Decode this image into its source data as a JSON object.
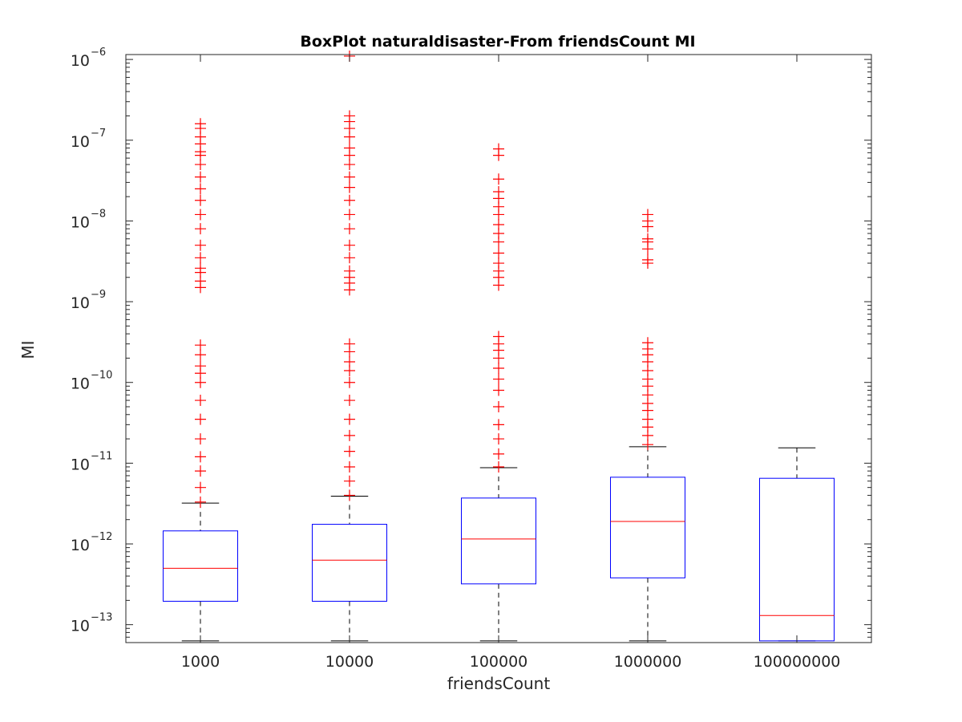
{
  "chart_data": {
    "type": "boxplot",
    "title": "BoxPlot naturaldisaster-From friendsCount MI",
    "xlabel": "friendsCount",
    "ylabel": "MI",
    "yscale": "log",
    "ylim": [
      6e-14,
      1.15e-06
    ],
    "yticks": [
      {
        "value": 1e-13,
        "base": "10",
        "exp": "−13"
      },
      {
        "value": 1e-12,
        "base": "10",
        "exp": "−12"
      },
      {
        "value": 1e-11,
        "base": "10",
        "exp": "−11"
      },
      {
        "value": 1e-10,
        "base": "10",
        "exp": "−10"
      },
      {
        "value": 1e-09,
        "base": "10",
        "exp": "−9"
      },
      {
        "value": 1e-08,
        "base": "10",
        "exp": "−8"
      },
      {
        "value": 1e-07,
        "base": "10",
        "exp": "−7"
      },
      {
        "value": 1e-06,
        "base": "10",
        "exp": "−6"
      }
    ],
    "categories": [
      "1000",
      "10000",
      "100000",
      "1000000",
      "100000000"
    ],
    "boxes": [
      {
        "category": "1000",
        "whisker_low": 6.3e-14,
        "q1": 1.95e-13,
        "median": 5e-13,
        "q3": 1.45e-12,
        "whisker_high": 3.2e-12,
        "outliers": [
          3.3e-12,
          5e-12,
          8e-12,
          1.2e-11,
          2e-11,
          3.5e-11,
          6e-11,
          1e-10,
          1.3e-10,
          1.6e-10,
          2.2e-10,
          2.9e-10,
          1.5e-09,
          1.8e-09,
          2.3e-09,
          2.6e-09,
          3.5e-09,
          5e-09,
          8e-09,
          1.2e-08,
          1.8e-08,
          2.5e-08,
          3.5e-08,
          5e-08,
          6.5e-08,
          7.2e-08,
          9e-08,
          1.1e-07,
          1.4e-07,
          1.6e-07
        ]
      },
      {
        "category": "10000",
        "whisker_low": 6.3e-14,
        "q1": 1.95e-13,
        "median": 6.3e-13,
        "q3": 1.75e-12,
        "whisker_high": 3.9e-12,
        "outliers": [
          4e-12,
          6e-12,
          9e-12,
          1.4e-11,
          2.2e-11,
          3.5e-11,
          6e-11,
          1e-10,
          1.4e-10,
          1.8e-10,
          2.4e-10,
          3e-10,
          1.4e-09,
          1.7e-09,
          2e-09,
          2.4e-09,
          3.5e-09,
          5e-09,
          8e-09,
          1.2e-08,
          1.8e-08,
          2.6e-08,
          3.5e-08,
          5e-08,
          6.5e-08,
          8e-08,
          1.1e-07,
          1.4e-07,
          1.7e-07,
          2e-07,
          1.1e-06
        ]
      },
      {
        "category": "100000",
        "whisker_low": 6.3e-14,
        "q1": 3.2e-13,
        "median": 1.15e-12,
        "q3": 3.7e-12,
        "whisker_high": 8.8e-12,
        "outliers": [
          9e-12,
          1.3e-11,
          2e-11,
          3e-11,
          5e-11,
          8e-11,
          1.1e-10,
          1.5e-10,
          2e-10,
          2.5e-10,
          3e-10,
          3.7e-10,
          1.6e-09,
          2e-09,
          2.4e-09,
          3e-09,
          4e-09,
          5.5e-09,
          7e-09,
          9e-09,
          1.2e-08,
          1.5e-08,
          1.9e-08,
          2.3e-08,
          3.3e-08,
          6.5e-08,
          7.8e-08
        ]
      },
      {
        "category": "1000000",
        "whisker_low": 6.3e-14,
        "q1": 3.8e-13,
        "median": 1.9e-12,
        "q3": 6.7e-12,
        "whisker_high": 1.6e-11,
        "outliers": [
          1.7e-11,
          2.2e-11,
          2.8e-11,
          3.5e-11,
          4.5e-11,
          5.5e-11,
          7e-11,
          9e-11,
          1.1e-10,
          1.4e-10,
          1.8e-10,
          2.2e-10,
          2.6e-10,
          3.1e-10,
          3e-09,
          3.3e-09,
          4.5e-09,
          5.5e-09,
          6e-09,
          8.5e-09,
          1e-08,
          1.2e-08
        ]
      },
      {
        "category": "100000000",
        "whisker_low": 6.3e-14,
        "q1": 6.3e-14,
        "median": 1.3e-13,
        "q3": 6.5e-12,
        "whisker_high": 1.55e-11,
        "outliers": []
      }
    ],
    "colors": {
      "box": "#0000ff",
      "median": "#ff0000",
      "outlier": "#ff0000",
      "whisker": "#000000",
      "axes": "#262626"
    }
  }
}
